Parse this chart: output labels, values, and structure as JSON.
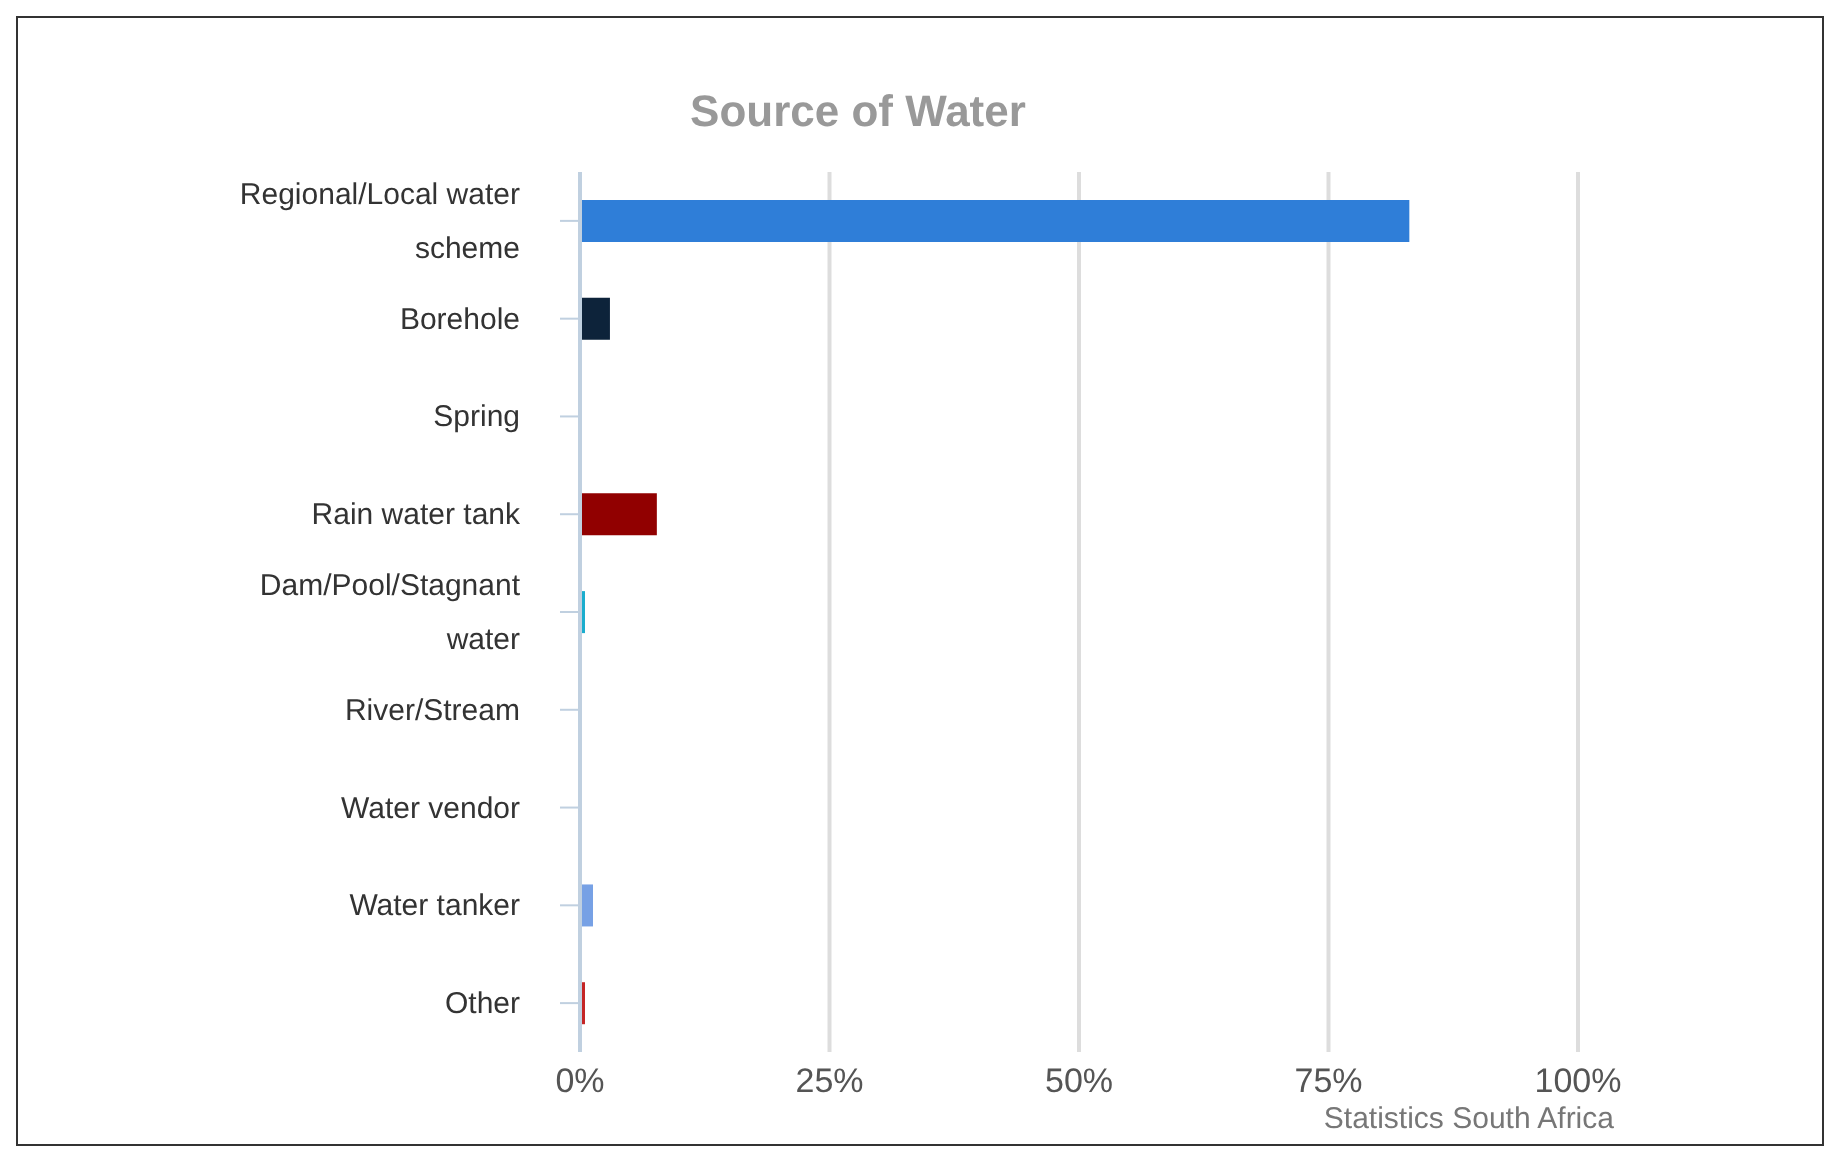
{
  "chart_data": {
    "type": "bar",
    "orientation": "horizontal",
    "title": "Source of Water",
    "categories": [
      "Regional/Local water scheme",
      "Borehole",
      "Spring",
      "Rain water tank",
      "Dam/Pool/Stagnant water",
      "River/Stream",
      "Water vendor",
      "Water tanker",
      "Other"
    ],
    "values": [
      83.1,
      3.0,
      0,
      7.7,
      0.5,
      0,
      0,
      1.3,
      0.5
    ],
    "colors": [
      "#2f7ed8",
      "#0d233a",
      "#8bbc21",
      "#910000",
      "#1aadce",
      "#492970",
      "#f28f43",
      "#77a1e5",
      "#c42525"
    ],
    "xlim": [
      0,
      100
    ],
    "xticks": [
      {
        "value": 0,
        "label": "0%"
      },
      {
        "value": 25,
        "label": "25%"
      },
      {
        "value": 50,
        "label": "50%"
      },
      {
        "value": 75,
        "label": "75%"
      },
      {
        "value": 100,
        "label": "100%"
      }
    ],
    "grid": "x",
    "annotations": [
      "Statistics South Africa"
    ]
  }
}
